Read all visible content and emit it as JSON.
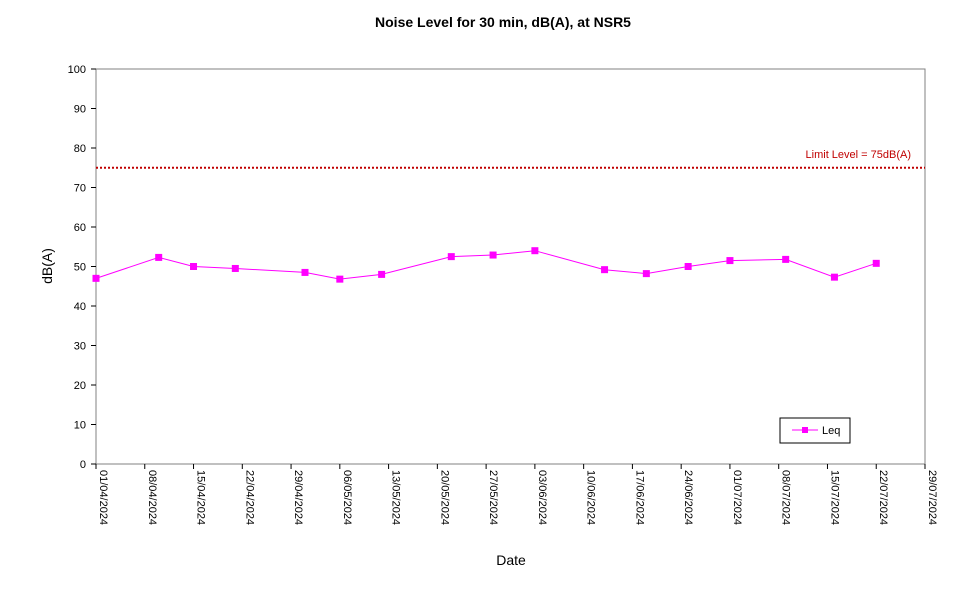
{
  "chart_data": {
    "type": "line",
    "title": "Noise Level for 30 min, dB(A), at NSR5",
    "xlabel": "Date",
    "ylabel": "dB(A)",
    "ylim": [
      0,
      100
    ],
    "y_ticks": [
      "0",
      "10",
      "20",
      "30",
      "40",
      "50",
      "60",
      "70",
      "80",
      "90",
      "100"
    ],
    "x_range": [
      "2024-04-01",
      "2024-07-29"
    ],
    "x_ticks": [
      "01/04/2024",
      "08/04/2024",
      "15/04/2024",
      "22/04/2024",
      "29/04/2024",
      "06/05/2024",
      "13/05/2024",
      "20/05/2024",
      "27/05/2024",
      "03/06/2024",
      "10/06/2024",
      "17/06/2024",
      "24/06/2024",
      "01/07/2024",
      "08/07/2024",
      "15/07/2024",
      "22/07/2024",
      "29/07/2024"
    ],
    "grid": false,
    "legend_position": "bottom-right",
    "series": [
      {
        "name": "Leq",
        "color": "#ff00ff",
        "marker": "square",
        "x": [
          "2024-04-01",
          "2024-04-10",
          "2024-04-15",
          "2024-04-21",
          "2024-05-01",
          "2024-05-06",
          "2024-05-12",
          "2024-05-22",
          "2024-05-28",
          "2024-06-03",
          "2024-06-13",
          "2024-06-19",
          "2024-06-25",
          "2024-07-01",
          "2024-07-09",
          "2024-07-16",
          "2024-07-22"
        ],
        "y": [
          47.0,
          52.3,
          50.0,
          49.5,
          48.5,
          46.8,
          48.0,
          52.5,
          52.9,
          54.0,
          49.2,
          48.2,
          50.0,
          51.5,
          51.8,
          47.3,
          50.8
        ]
      }
    ],
    "limit_line": {
      "label": "Limit Level  = 75dB(A)",
      "value": 75,
      "color": "#c00000"
    }
  }
}
